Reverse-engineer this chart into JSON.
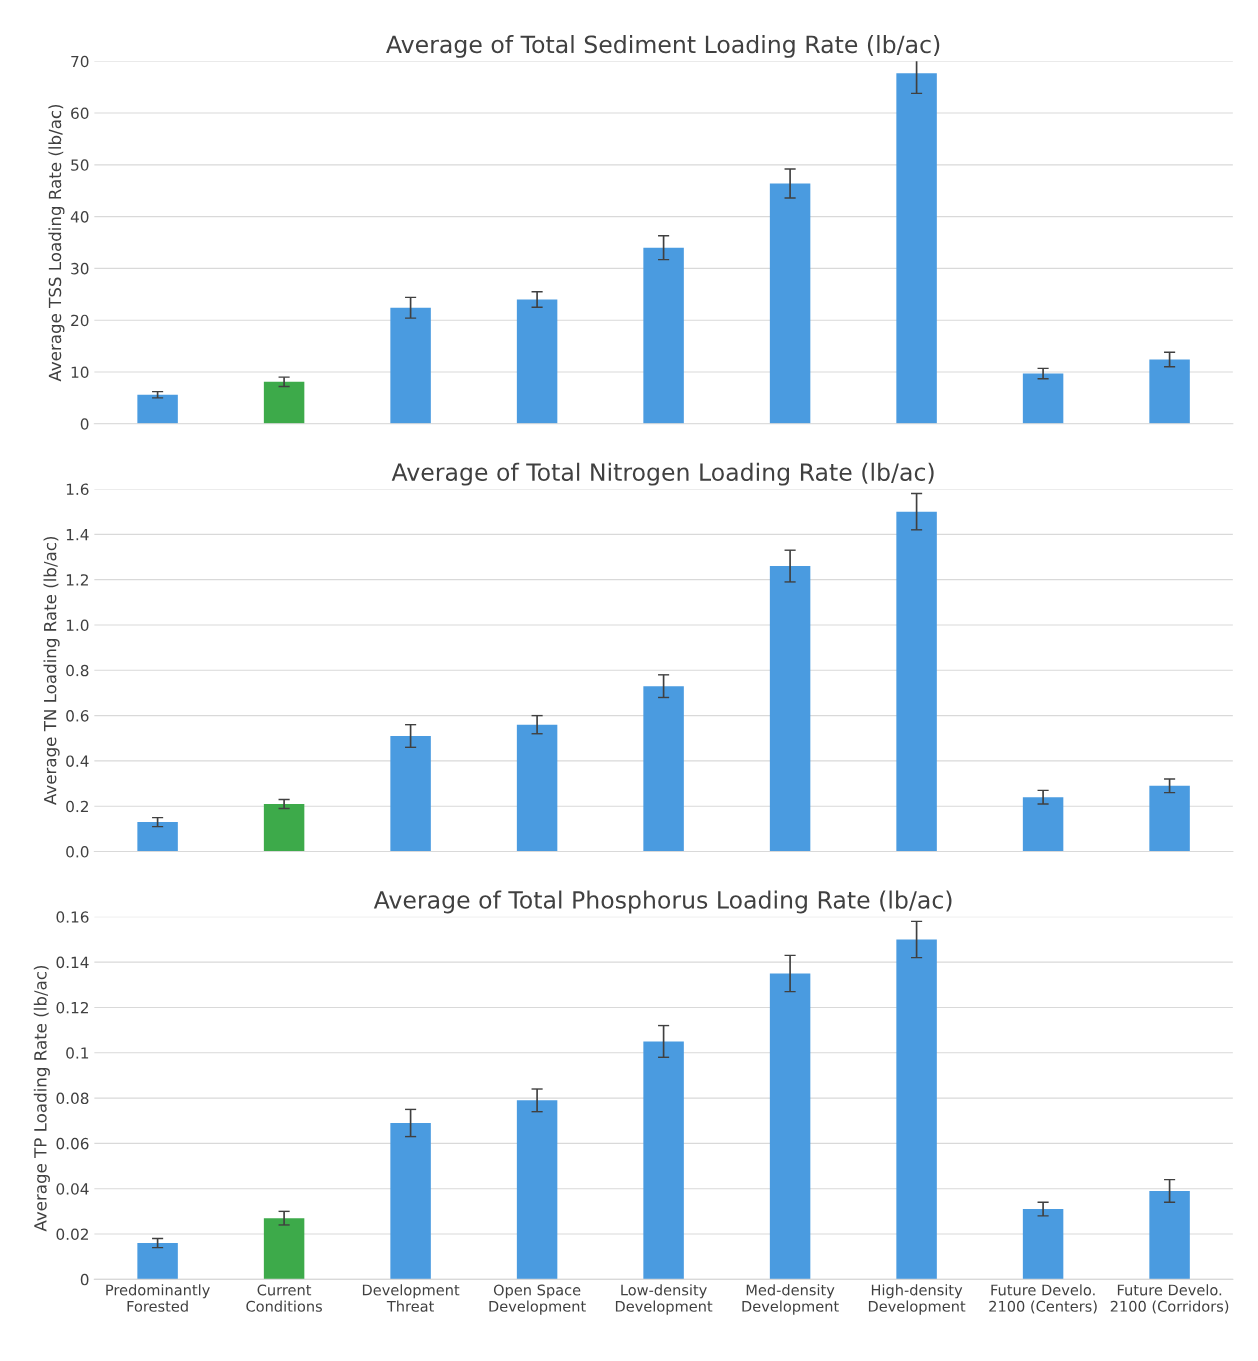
{
  "chart_data": [
    {
      "type": "bar",
      "title": "Average of Total Sediment Loading Rate (lb/ac)",
      "ylabel": "Average TSS Loading Rate (lb/ac)",
      "categories": [
        null,
        null,
        null,
        null,
        null,
        null,
        null,
        null,
        null
      ],
      "values": [
        5.6,
        8.1,
        22.4,
        24.0,
        34.0,
        46.4,
        67.7,
        9.7,
        12.4
      ],
      "errors": [
        0.6,
        0.9,
        2.0,
        1.5,
        2.3,
        2.8,
        3.9,
        1.0,
        1.4
      ],
      "colors": [
        "#4a9be0",
        "#3daa4a",
        "#4a9be0",
        "#4a9be0",
        "#4a9be0",
        "#4a9be0",
        "#4a9be0",
        "#4a9be0",
        "#4a9be0"
      ],
      "ylim": [
        0,
        70
      ],
      "yticks": [
        0,
        10,
        20,
        30,
        40,
        50,
        60,
        70
      ],
      "grid": "y",
      "tick_labels": "y"
    },
    {
      "type": "bar",
      "title": "Average of Total Nitrogen Loading Rate (lb/ac)",
      "ylabel": "Average TN Loading Rate (lb/ac)",
      "categories": [
        null,
        null,
        null,
        null,
        null,
        null,
        null,
        null,
        null
      ],
      "values": [
        0.13,
        0.21,
        0.51,
        0.56,
        0.73,
        1.26,
        1.5,
        0.24,
        0.29
      ],
      "errors": [
        0.02,
        0.02,
        0.05,
        0.04,
        0.05,
        0.07,
        0.08,
        0.03,
        0.03
      ],
      "colors": [
        "#4a9be0",
        "#3daa4a",
        "#4a9be0",
        "#4a9be0",
        "#4a9be0",
        "#4a9be0",
        "#4a9be0",
        "#4a9be0",
        "#4a9be0"
      ],
      "ylim": [
        0,
        1.6
      ],
      "yticks": [
        {
          "value": 0,
          "label": "0.0"
        },
        0.2,
        0.4,
        0.6,
        0.8,
        {
          "value": 1,
          "label": "1.0"
        },
        1.2,
        1.4,
        1.6
      ],
      "grid": "y",
      "tick_labels": "y"
    },
    {
      "type": "bar",
      "title": "Average of Total Phosphorus Loading Rate (lb/ac)",
      "ylabel": "Average TP Loading Rate (lb/ac)",
      "categories": [
        "Predominantly\nForested",
        "Current\nConditions",
        "Development\nThreat",
        "Open Space\nDevelopment",
        "Low-density\nDevelopment",
        "Med-density\nDevelopment",
        "High-density\nDevelopment",
        "Future Develo.\n2100 (Centers)",
        "Future Develo.\n2100 (Corridors)"
      ],
      "values": [
        0.016,
        0.027,
        0.069,
        0.079,
        0.105,
        0.135,
        0.15,
        0.031,
        0.039
      ],
      "errors": [
        0.002,
        0.003,
        0.006,
        0.005,
        0.007,
        0.008,
        0.008,
        0.003,
        0.005
      ],
      "colors": [
        "#4a9be0",
        "#3daa4a",
        "#4a9be0",
        "#4a9be0",
        "#4a9be0",
        "#4a9be0",
        "#4a9be0",
        "#4a9be0",
        "#4a9be0"
      ],
      "ylim": [
        0,
        0.16
      ],
      "yticks": [
        0,
        0.02,
        0.04,
        0.06,
        0.08,
        0.1,
        0.12,
        0.14,
        0.16
      ],
      "grid": "y"
    }
  ]
}
